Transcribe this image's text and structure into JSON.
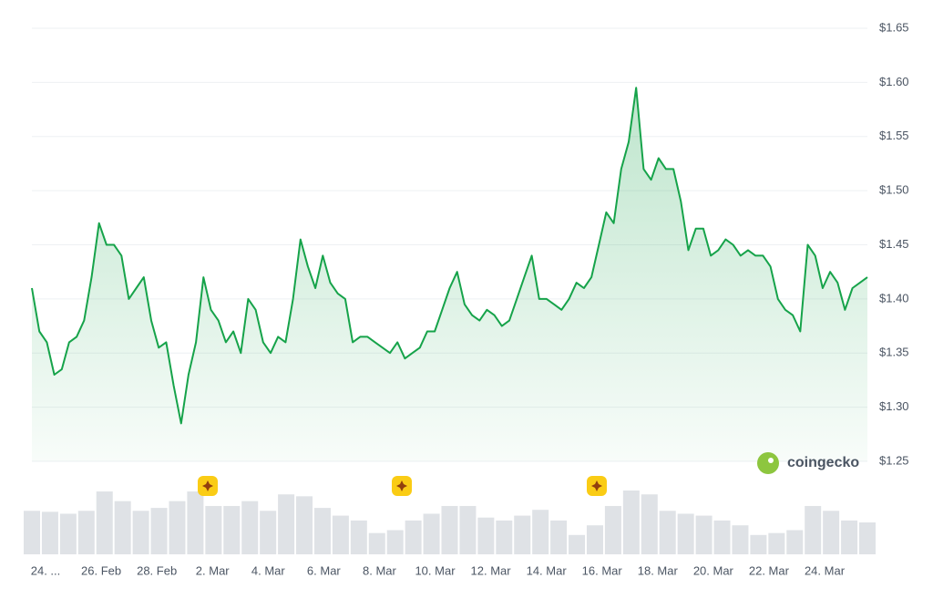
{
  "chart_data": {
    "type": "line",
    "brand": "coingecko",
    "ylim": [
      1.25,
      1.65
    ],
    "yticks": [
      {
        "value": 1.25,
        "label": "$1.25"
      },
      {
        "value": 1.3,
        "label": "$1.30"
      },
      {
        "value": 1.35,
        "label": "$1.35"
      },
      {
        "value": 1.4,
        "label": "$1.40"
      },
      {
        "value": 1.45,
        "label": "$1.45"
      },
      {
        "value": 1.5,
        "label": "$1.50"
      },
      {
        "value": 1.55,
        "label": "$1.55"
      },
      {
        "value": 1.6,
        "label": "$1.60"
      },
      {
        "value": 1.65,
        "label": "$1.65"
      }
    ],
    "grid": true,
    "xtick_labels": [
      "24. ...",
      "26. Feb",
      "28. Feb",
      "2. Mar",
      "4. Mar",
      "6. Mar",
      "8. Mar",
      "10. Mar",
      "12. Mar",
      "14. Mar",
      "16. Mar",
      "18. Mar",
      "20. Mar",
      "22. Mar",
      "24. Mar"
    ],
    "series": [
      {
        "color": "#16a34a",
        "values": [
          1.41,
          1.37,
          1.36,
          1.33,
          1.335,
          1.36,
          1.365,
          1.38,
          1.42,
          1.47,
          1.45,
          1.45,
          1.44,
          1.4,
          1.41,
          1.42,
          1.38,
          1.355,
          1.36,
          1.32,
          1.285,
          1.33,
          1.36,
          1.42,
          1.39,
          1.38,
          1.36,
          1.37,
          1.35,
          1.4,
          1.39,
          1.36,
          1.35,
          1.365,
          1.36,
          1.4,
          1.455,
          1.43,
          1.41,
          1.44,
          1.415,
          1.405,
          1.4,
          1.36,
          1.365,
          1.365,
          1.36,
          1.355,
          1.35,
          1.36,
          1.345,
          1.35,
          1.355,
          1.37,
          1.37,
          1.39,
          1.41,
          1.425,
          1.395,
          1.385,
          1.38,
          1.39,
          1.385,
          1.375,
          1.38,
          1.4,
          1.42,
          1.44,
          1.4,
          1.4,
          1.395,
          1.39,
          1.4,
          1.415,
          1.41,
          1.42,
          1.45,
          1.48,
          1.47,
          1.52,
          1.545,
          1.595,
          1.52,
          1.51,
          1.53,
          1.52,
          1.52,
          1.49,
          1.445,
          1.465,
          1.465,
          1.44,
          1.445,
          1.455,
          1.45,
          1.44,
          1.445,
          1.44,
          1.44,
          1.43,
          1.4,
          1.39,
          1.385,
          1.37,
          1.45,
          1.44,
          1.41,
          1.425,
          1.415,
          1.39,
          1.41,
          1.415,
          1.42
        ]
      }
    ],
    "volume": {
      "color": "#d1d5db",
      "values": [
        45,
        44,
        42,
        45,
        65,
        55,
        45,
        48,
        55,
        65,
        50,
        50,
        55,
        45,
        62,
        60,
        48,
        40,
        35,
        22,
        25,
        35,
        42,
        50,
        50,
        38,
        35,
        40,
        46,
        35,
        20,
        30,
        50,
        66,
        62,
        45,
        42,
        40,
        35,
        30,
        20,
        22,
        25,
        50,
        45,
        35,
        33
      ]
    }
  }
}
